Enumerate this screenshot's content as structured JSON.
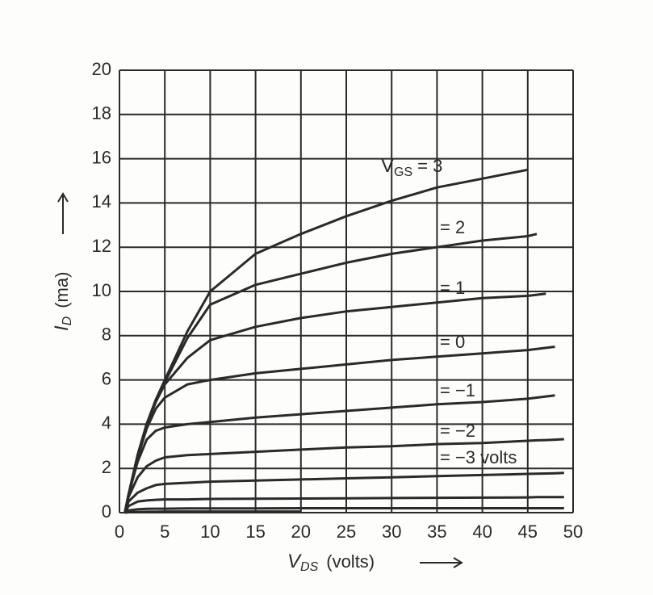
{
  "chart_data": {
    "type": "line",
    "x_label": {
      "symbol": "V",
      "subscript": "DS",
      "unit": "(volts)"
    },
    "y_label": {
      "symbol": "I",
      "subscript": "D",
      "unit": "(ma)"
    },
    "legend_symbol": {
      "symbol": "V",
      "subscript": "GS"
    },
    "x": [
      0.6,
      1,
      2,
      3,
      4,
      5,
      7.5,
      10,
      15,
      20,
      25,
      30,
      35,
      40,
      45,
      46,
      47,
      48,
      49
    ],
    "xlim": [
      0,
      50
    ],
    "xticks": [
      0,
      5,
      10,
      15,
      20,
      25,
      30,
      35,
      40,
      45,
      50
    ],
    "ylim": [
      0,
      20
    ],
    "yticks": [
      0,
      2,
      4,
      6,
      8,
      10,
      12,
      14,
      16,
      18,
      20
    ],
    "grid": true,
    "color": "#2b2a2a",
    "series": [
      {
        "name": "= 3",
        "values": [
          0,
          0.8,
          2.6,
          4.0,
          5.1,
          6.0,
          8.2,
          10.0,
          11.7,
          12.6,
          13.4,
          14.1,
          14.7,
          15.1,
          15.5,
          null,
          null,
          null,
          null
        ]
      },
      {
        "name": "= 2",
        "values": [
          0,
          0.8,
          2.6,
          4.0,
          5.1,
          5.9,
          7.9,
          9.4,
          10.3,
          10.8,
          11.3,
          11.7,
          12.0,
          12.3,
          12.5,
          12.6,
          null,
          null,
          null
        ]
      },
      {
        "name": "= 1",
        "values": [
          0,
          0.8,
          2.6,
          4.0,
          5.0,
          5.8,
          7.0,
          7.8,
          8.4,
          8.8,
          9.1,
          9.3,
          9.5,
          9.7,
          9.8,
          9.85,
          9.9,
          null,
          null
        ]
      },
      {
        "name": "= 0",
        "values": [
          0,
          0.8,
          2.5,
          3.8,
          4.7,
          5.2,
          5.8,
          6.0,
          6.3,
          6.5,
          6.7,
          6.9,
          7.05,
          7.2,
          7.35,
          7.4,
          7.45,
          7.5,
          null
        ]
      },
      {
        "name": "= −1",
        "values": [
          0,
          0.8,
          2.3,
          3.3,
          3.7,
          3.85,
          4.0,
          4.1,
          4.3,
          4.45,
          4.6,
          4.75,
          4.9,
          5.0,
          5.15,
          5.2,
          5.25,
          5.3,
          null
        ]
      },
      {
        "name": "= −2",
        "values": [
          0,
          0.7,
          1.6,
          2.1,
          2.35,
          2.5,
          2.6,
          2.65,
          2.75,
          2.85,
          2.95,
          3.0,
          3.1,
          3.15,
          3.25,
          3.27,
          3.28,
          3.3,
          3.32
        ]
      },
      {
        "name": "= −3 volts",
        "values": [
          0,
          0.5,
          0.9,
          1.1,
          1.25,
          1.3,
          1.35,
          1.4,
          1.45,
          1.5,
          1.55,
          1.6,
          1.65,
          1.7,
          1.75,
          1.76,
          1.77,
          1.78,
          1.8
        ]
      },
      {
        "values": [
          0,
          0.3,
          0.5,
          0.55,
          0.58,
          0.6,
          0.6,
          0.62,
          0.63,
          0.64,
          0.65,
          0.66,
          0.67,
          0.68,
          0.69,
          0.7,
          0.7,
          0.7,
          0.7
        ]
      },
      {
        "values": [
          0,
          0.1,
          0.15,
          0.17,
          0.18,
          0.18,
          0.19,
          0.19,
          0.19,
          0.2,
          0.2,
          0.2,
          0.2,
          0.2,
          0.2,
          0.2,
          0.2,
          0.2,
          0.2
        ]
      },
      {
        "values": [
          0,
          0.02,
          0.03,
          0.04,
          0.04,
          0.05,
          0.05,
          0.05,
          0.05,
          0.05,
          null,
          null,
          null,
          null,
          null,
          null,
          null,
          null,
          null
        ]
      }
    ]
  }
}
